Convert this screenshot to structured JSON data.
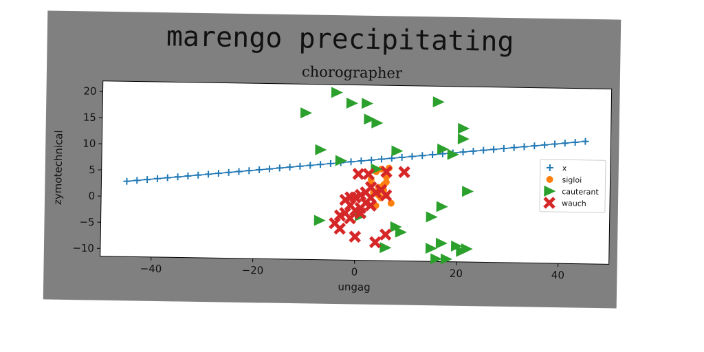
{
  "chart_data": {
    "type": "scatter",
    "title": "marengo precipitating",
    "subtitle": "chorographer",
    "xlabel": "ungag",
    "ylabel": "zymotechnical",
    "xlim": [
      -50,
      50
    ],
    "ylim": [
      -11.5,
      22
    ],
    "xticks": [
      -40,
      -20,
      0,
      20,
      40
    ],
    "yticks": [
      -10,
      -5,
      0,
      5,
      10,
      15,
      20
    ],
    "grid": false,
    "legend_position": "center-right",
    "series": [
      {
        "name": "x",
        "marker": "plus",
        "color": "#1f77b4",
        "line": true,
        "points": [
          [
            -45,
            2.9
          ],
          [
            -43,
            3.1
          ],
          [
            -41,
            3.3
          ],
          [
            -39,
            3.5
          ],
          [
            -37,
            3.7
          ],
          [
            -35,
            3.9
          ],
          [
            -33,
            4.1
          ],
          [
            -31,
            4.3
          ],
          [
            -29,
            4.5
          ],
          [
            -27,
            4.7
          ],
          [
            -25,
            4.9
          ],
          [
            -23,
            5.1
          ],
          [
            -21,
            5.3
          ],
          [
            -19,
            5.5
          ],
          [
            -17,
            5.7
          ],
          [
            -15,
            5.9
          ],
          [
            -13,
            6.1
          ],
          [
            -11,
            6.3
          ],
          [
            -9,
            6.5
          ],
          [
            -7,
            6.7
          ],
          [
            -5,
            6.9
          ],
          [
            -3,
            7.1
          ],
          [
            -1,
            7.3
          ],
          [
            1,
            7.5
          ],
          [
            3,
            7.7
          ],
          [
            5,
            7.9
          ],
          [
            7,
            8.1
          ],
          [
            9,
            8.3
          ],
          [
            11,
            8.5
          ],
          [
            13,
            8.7
          ],
          [
            15,
            8.9
          ],
          [
            17,
            9.1
          ],
          [
            19,
            9.3
          ],
          [
            21,
            9.5
          ],
          [
            23,
            9.7
          ],
          [
            25,
            9.9
          ],
          [
            27,
            10.1
          ],
          [
            29,
            10.3
          ],
          [
            31,
            10.5
          ],
          [
            33,
            10.7
          ],
          [
            35,
            10.9
          ],
          [
            37,
            11.1
          ],
          [
            39,
            11.3
          ],
          [
            41,
            11.5
          ],
          [
            43,
            11.7
          ],
          [
            45,
            11.9
          ]
        ]
      },
      {
        "name": "sigloi",
        "marker": "circle",
        "color": "#ff7f0e",
        "line": false,
        "points": [
          [
            3,
            4
          ],
          [
            4,
            5.5
          ],
          [
            5,
            6
          ],
          [
            6,
            4.5
          ],
          [
            6.5,
            6.2
          ],
          [
            4.5,
            2.5
          ],
          [
            5.5,
            3
          ],
          [
            3.5,
            1.5
          ],
          [
            5,
            0.5
          ],
          [
            6,
            1
          ],
          [
            7,
            -0.5
          ],
          [
            4,
            -1
          ],
          [
            5.5,
            2
          ],
          [
            6,
            3.5
          ],
          [
            3,
            3
          ],
          [
            4.5,
            1
          ]
        ]
      },
      {
        "name": "cauterant",
        "marker": "triangle-right",
        "color": "#2ca02c",
        "line": false,
        "points": [
          [
            -10,
            16.5
          ],
          [
            -4,
            20.5
          ],
          [
            -1,
            18.5
          ],
          [
            2,
            18.5
          ],
          [
            2.5,
            15.5
          ],
          [
            4,
            14.8
          ],
          [
            16,
            19
          ],
          [
            21,
            14
          ],
          [
            21,
            12
          ],
          [
            17,
            10
          ],
          [
            19,
            9
          ],
          [
            -7,
            9.5
          ],
          [
            -3,
            7.5
          ],
          [
            8,
            9.5
          ],
          [
            4,
            6
          ],
          [
            22,
            2
          ],
          [
            17,
            -1
          ],
          [
            15,
            -3
          ],
          [
            -7,
            -4
          ],
          [
            8,
            -5
          ],
          [
            9,
            -6
          ],
          [
            15,
            -9
          ],
          [
            17,
            -8
          ],
          [
            20,
            -8.5
          ],
          [
            21,
            -9.5
          ],
          [
            22,
            -9
          ],
          [
            16,
            -11
          ],
          [
            18,
            -11
          ],
          [
            6,
            -9
          ],
          [
            1,
            -3
          ]
        ]
      },
      {
        "name": "wauch",
        "marker": "x",
        "color": "#d62728",
        "line": false,
        "points": [
          [
            0.5,
            5
          ],
          [
            2.5,
            5
          ],
          [
            6,
            5.5
          ],
          [
            9.5,
            5.5
          ],
          [
            -2,
            0
          ],
          [
            0,
            0.5
          ],
          [
            1,
            1
          ],
          [
            2,
            1.5
          ],
          [
            3,
            0.5
          ],
          [
            4,
            1.5
          ],
          [
            5,
            2
          ],
          [
            6,
            1
          ],
          [
            -1,
            -1
          ],
          [
            0,
            -2
          ],
          [
            1,
            -1.5
          ],
          [
            2,
            -0.5
          ],
          [
            3,
            -1
          ],
          [
            -3,
            -3
          ],
          [
            -2,
            -2.5
          ],
          [
            -1,
            -3.5
          ],
          [
            -4,
            -4.5
          ],
          [
            -3,
            -5.5
          ],
          [
            0,
            -7
          ],
          [
            4,
            -8
          ],
          [
            6,
            -6.5
          ],
          [
            1,
            -2.5
          ],
          [
            -1,
            0.5
          ],
          [
            3,
            2.5
          ]
        ]
      }
    ]
  }
}
